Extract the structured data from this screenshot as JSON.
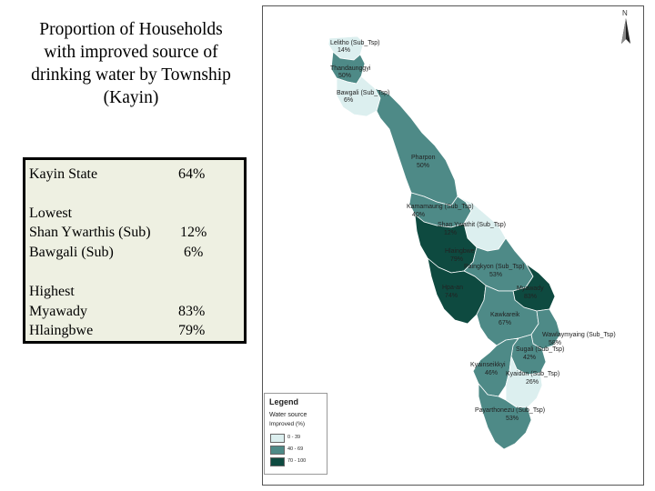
{
  "title_lines": [
    "Proportion of Households",
    "with improved source of",
    "drinking water  by Township",
    "(Kayin)"
  ],
  "stats": {
    "state_label": "Kayin State",
    "state_value": "64%",
    "lowest_heading": "Lowest",
    "lowest": [
      {
        "name": "Shan Ywarthis (Sub)",
        "value": "12%"
      },
      {
        "name": "Bawgali (Sub)",
        "value": "6%"
      }
    ],
    "highest_heading": "Highest",
    "highest": [
      {
        "name": "Myawady",
        "value": "83%"
      },
      {
        "name": "Hlaingbwe",
        "value": "79%"
      }
    ]
  },
  "map": {
    "north_label": "N",
    "colors": {
      "low": "#dcefef",
      "mid": "#4e8a87",
      "high": "#0e4a40",
      "stroke": "#ffffff"
    },
    "townships": [
      {
        "name": "Lelitho (Sub_Tsp)",
        "value": "14%",
        "class": "low"
      },
      {
        "name": "Thandaunggyi",
        "value": "50%",
        "class": "mid"
      },
      {
        "name": "Bawgali (Sub_Tsp)",
        "value": "6%",
        "class": "low"
      },
      {
        "name": "Pharpon",
        "value": "50%",
        "class": "mid"
      },
      {
        "name": "Kamamaung (Sub_Tsp)",
        "value": "40%",
        "class": "mid"
      },
      {
        "name": "Shan Ywathit (Sub_Tsp)",
        "value": "12%",
        "class": "low"
      },
      {
        "name": "Hlaingbwe",
        "value": "79%",
        "class": "high"
      },
      {
        "name": "Paingkyon (Sub_Tsp)",
        "value": "53%",
        "class": "mid"
      },
      {
        "name": "Hpa-an",
        "value": "74%",
        "class": "high"
      },
      {
        "name": "Myawady",
        "value": "83%",
        "class": "high"
      },
      {
        "name": "Kawkareik",
        "value": "67%",
        "class": "mid"
      },
      {
        "name": "Wawlaymyaing (Sub_Tsp)",
        "value": "58%",
        "class": "mid"
      },
      {
        "name": "Sugali (Sub_Tsp)",
        "value": "42%",
        "class": "mid"
      },
      {
        "name": "Kyainseikkyi",
        "value": "46%",
        "class": "mid"
      },
      {
        "name": "Kyaidon (Sub_Tsp)",
        "value": "26%",
        "class": "low"
      },
      {
        "name": "Payarthonezu (Sub_Tsp)",
        "value": "53%",
        "class": "mid"
      }
    ]
  },
  "legend": {
    "title": "Legend",
    "subtitle": "Water source",
    "unit": "Improved (%)",
    "items": [
      {
        "label": "0 - 39",
        "class": "low"
      },
      {
        "label": "40 - 69",
        "class": "mid"
      },
      {
        "label": "70 - 100",
        "class": "high"
      }
    ]
  }
}
